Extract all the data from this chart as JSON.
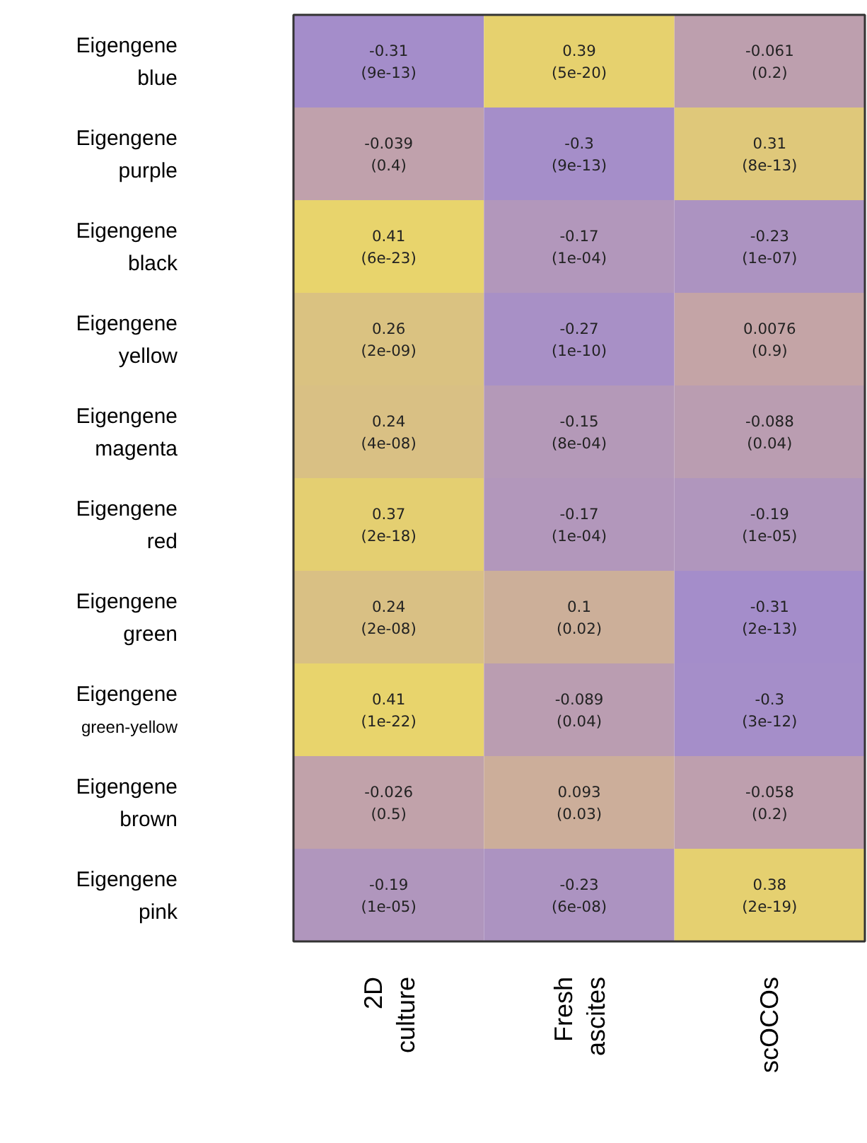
{
  "chart_data": {
    "type": "heatmap",
    "data_labels": true,
    "categories": [
      "2D culture",
      "Fresh ascites",
      "scOCOs"
    ],
    "y_categories": [
      "Eigengene blue",
      "Eigengene purple",
      "Eigengene black",
      "Eigengene yellow",
      "Eigengene magenta",
      "Eigengene red",
      "Eigengene green",
      "Eigengene green-yellow",
      "Eigengene brown",
      "Eigengene pink"
    ],
    "cells": [
      [
        -0.31,
        0.39,
        -0.061
      ],
      [
        -0.039,
        -0.3,
        0.31
      ],
      [
        0.41,
        -0.17,
        -0.23
      ],
      [
        0.26,
        -0.27,
        0.0076
      ],
      [
        0.24,
        -0.15,
        -0.088
      ],
      [
        0.37,
        -0.17,
        -0.19
      ],
      [
        0.24,
        0.1,
        -0.31
      ],
      [
        0.41,
        -0.089,
        -0.3
      ],
      [
        -0.026,
        0.093,
        -0.058
      ],
      [
        -0.19,
        -0.23,
        0.38
      ]
    ],
    "annotations": [
      "(9e-13)",
      "(5e-20)",
      "(0.2)",
      "(0.4)",
      "(9e-13)",
      "(8e-13)",
      "(6e-23)",
      "(1e-04)",
      "(1e-07)",
      "(2e-09)",
      "(1e-10)",
      "(0.9)",
      "(4e-08)",
      "(8e-04)",
      "(0.04)",
      "(2e-18)",
      "(1e-04)",
      "(1e-05)",
      "(2e-08)",
      "(0.02)",
      "(2e-13)",
      "(1e-22)",
      "(0.04)",
      "(3e-12)",
      "(0.5)",
      "(0.03)",
      "(0.2)",
      "(1e-05)",
      "(6e-08)",
      "(2e-19)"
    ]
  }
}
